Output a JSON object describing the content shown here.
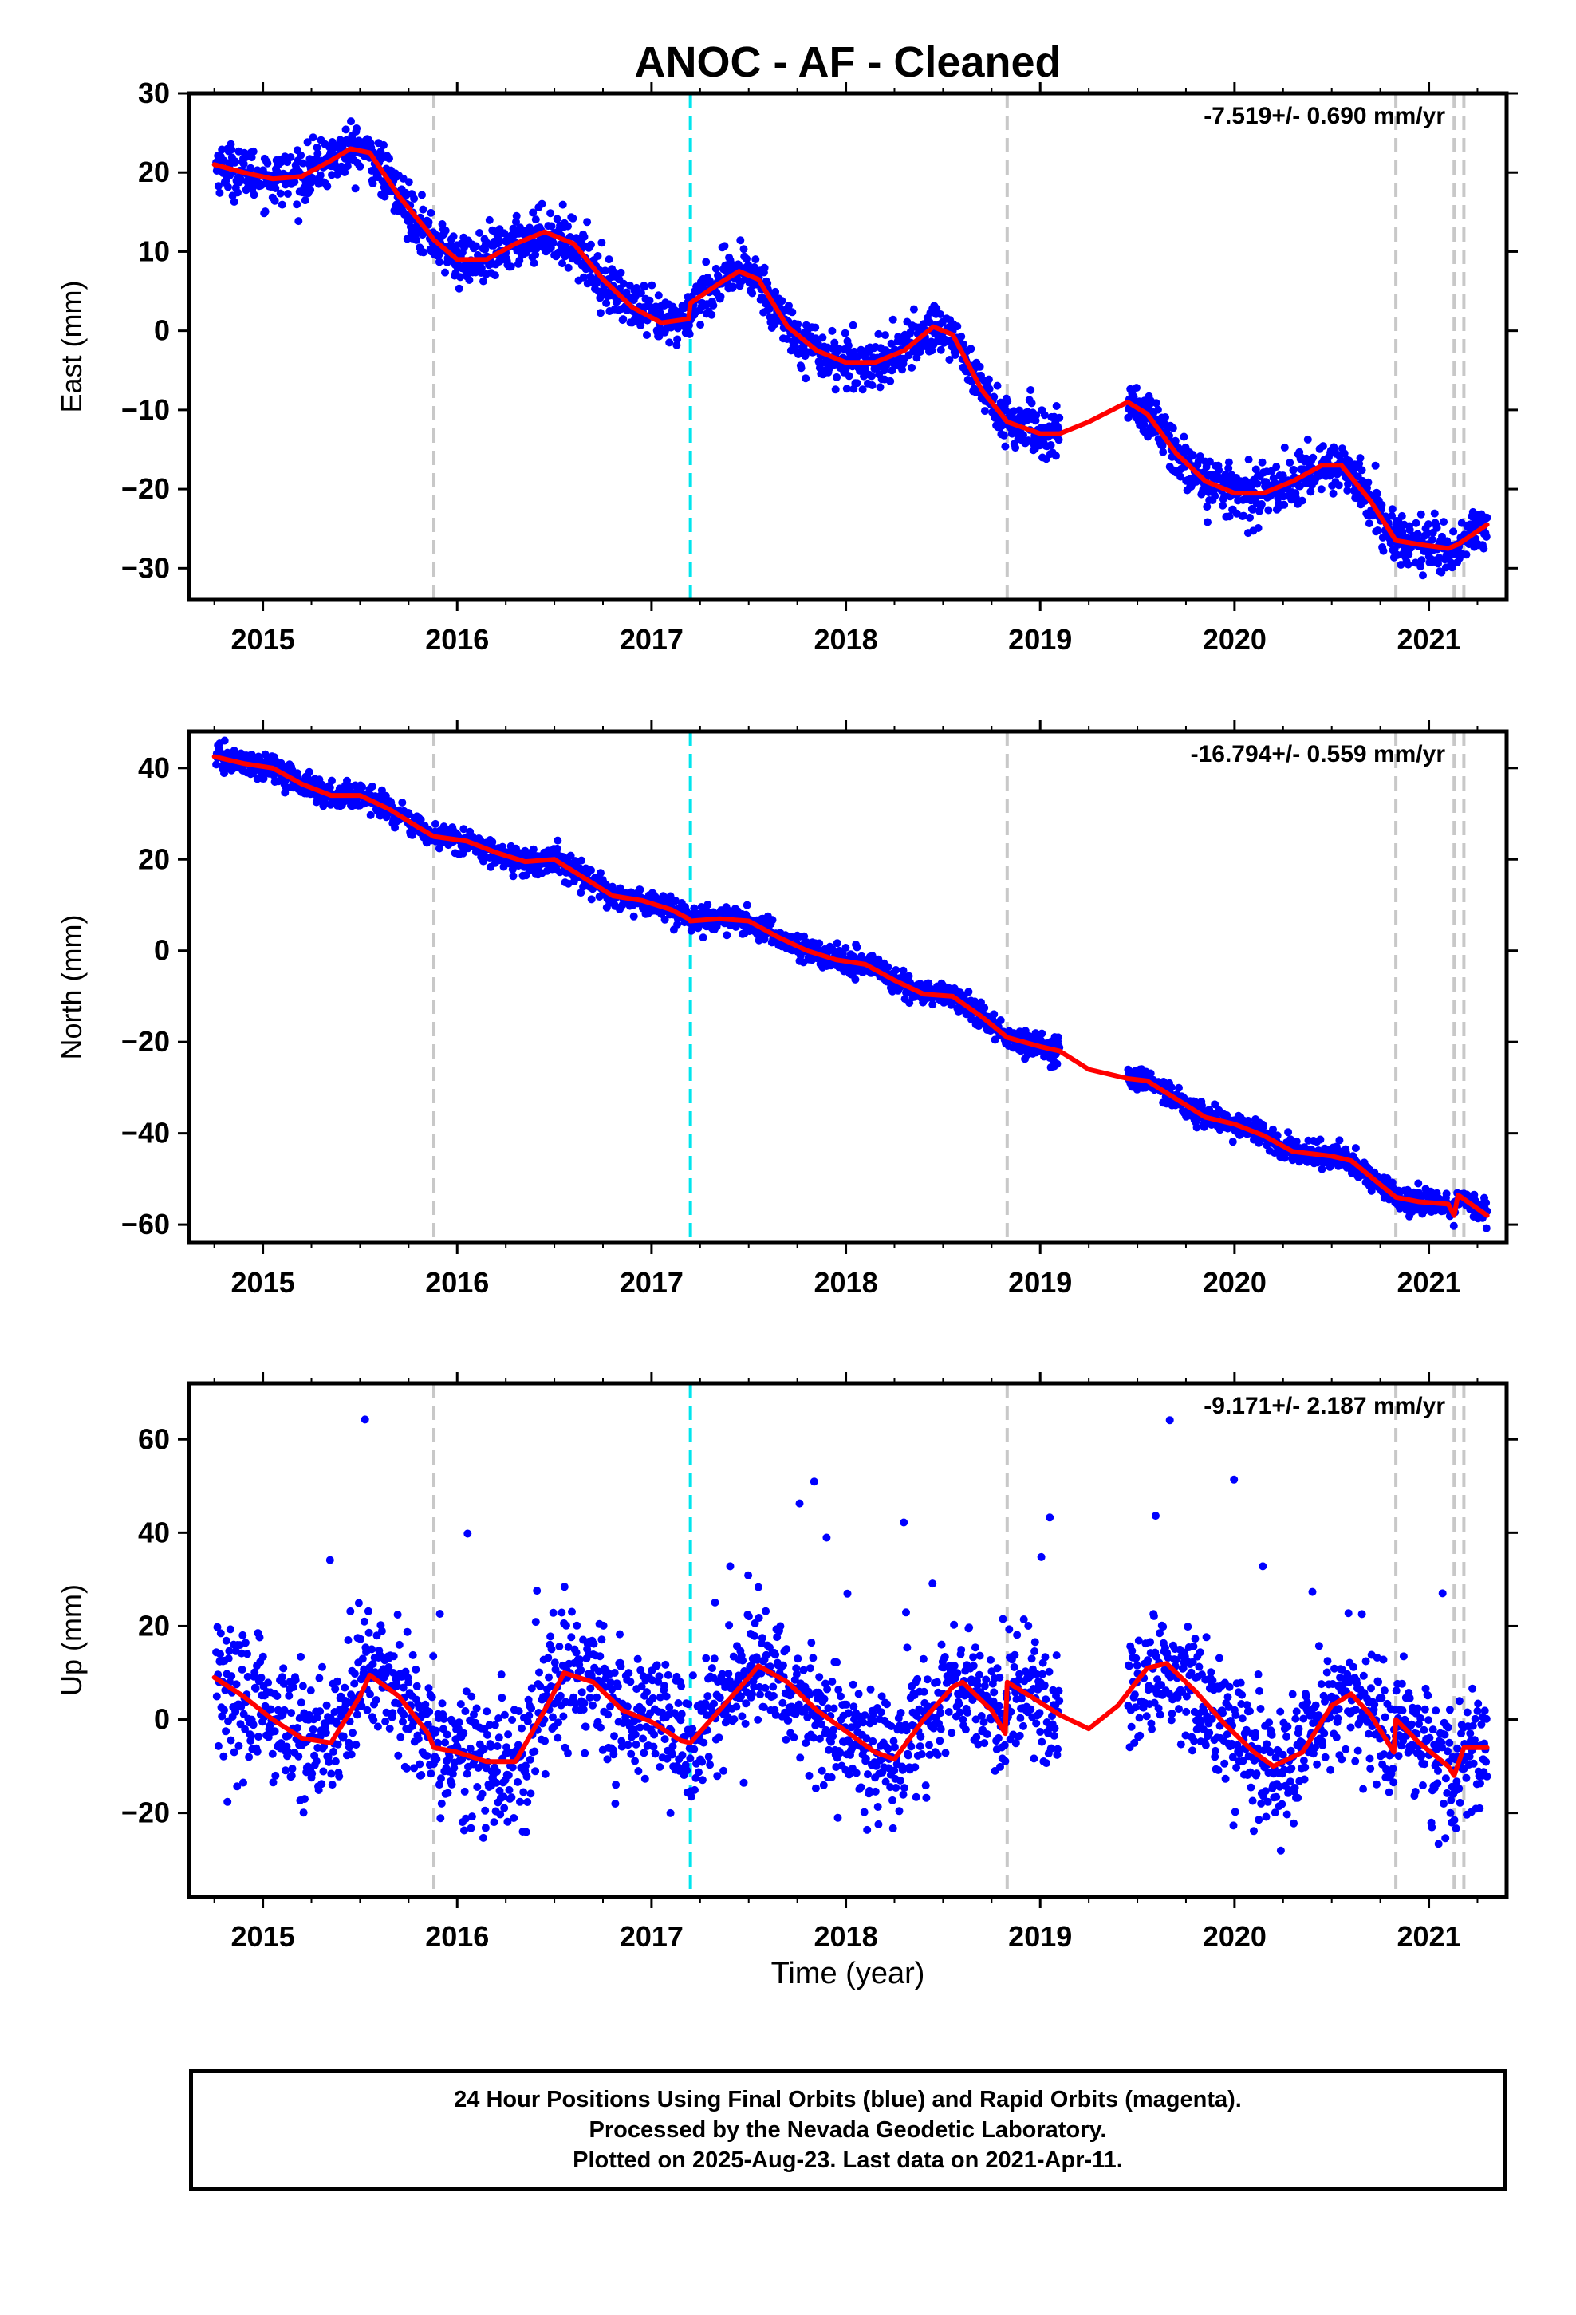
{
  "chart_data": {
    "title": "ANOC  - AF - Cleaned",
    "xlabel": "Time (year)",
    "type": "scatter",
    "xlim": [
      2014.62,
      2021.4
    ],
    "x_ticks": [
      "2015",
      "2016",
      "2017",
      "2018",
      "2019",
      "2020",
      "2021"
    ],
    "colors": {
      "observations": "#0000ff",
      "model": "#ff0000",
      "equipment_change": "#c8c8c8",
      "earthquake_offset": "#00e5ee"
    },
    "vertical_lines": {
      "gray": [
        2015.88,
        2018.83,
        2020.83,
        2021.13,
        2021.18
      ],
      "cyan": [
        2017.2
      ]
    },
    "data_gap": [
      2019.1,
      2019.45
    ],
    "panels": [
      {
        "id": "east",
        "ylabel": "East (mm)",
        "rate_label": "-7.519+/- 0.690 mm/yr",
        "ylim": [
          -34,
          30
        ],
        "y_ticks": [
          "30",
          "20",
          "10",
          "0",
          "−10",
          "−20",
          "−30"
        ],
        "y_tick_values": [
          30,
          20,
          10,
          0,
          -10,
          -20,
          -30
        ],
        "series": [
          {
            "name": "Final Orbits (blue)",
            "kind": "points"
          },
          {
            "name": "model",
            "kind": "line",
            "x": [
              2014.75,
              2014.9,
              2015.05,
              2015.2,
              2015.35,
              2015.45,
              2015.55,
              2015.7,
              2015.85,
              2015.88,
              2016.0,
              2016.15,
              2016.3,
              2016.45,
              2016.6,
              2016.75,
              2016.9,
              2017.05,
              2017.19,
              2017.2,
              2017.35,
              2017.45,
              2017.55,
              2017.7,
              2017.85,
              2018.0,
              2018.15,
              2018.3,
              2018.45,
              2018.55,
              2018.7,
              2018.83,
              2019.0,
              2019.1,
              2019.25,
              2019.45,
              2019.55,
              2019.7,
              2019.85,
              2020.0,
              2020.15,
              2020.3,
              2020.45,
              2020.55,
              2020.7,
              2020.83,
              2020.95,
              2021.1,
              2021.15,
              2021.3
            ],
            "y": [
              21,
              20,
              19.2,
              19.5,
              21.5,
              23,
              22.5,
              17,
              12.5,
              11.5,
              9,
              9,
              11,
              12.5,
              11,
              6.5,
              3,
              1,
              1.5,
              3.5,
              6,
              7.5,
              6.5,
              0.5,
              -2.5,
              -4,
              -4,
              -2.5,
              0.5,
              -0.5,
              -7.5,
              -11.5,
              -13,
              -13,
              -11.5,
              -9,
              -10.5,
              -15.5,
              -19,
              -20.5,
              -20.5,
              -19,
              -17,
              -17,
              -21.5,
              -26.5,
              -27,
              -27.5,
              -27,
              -24.5
            ]
          }
        ]
      },
      {
        "id": "north",
        "ylabel": "North (mm)",
        "rate_label": "-16.794+/- 0.559 mm/yr",
        "ylim": [
          -64,
          48
        ],
        "y_ticks": [
          "40",
          "20",
          "0",
          "−20",
          "−40",
          "−60"
        ],
        "y_tick_values": [
          40,
          20,
          0,
          -20,
          -40,
          -60
        ],
        "series": [
          {
            "name": "Final Orbits (blue)",
            "kind": "points"
          },
          {
            "name": "model",
            "kind": "line",
            "x": [
              2014.75,
              2014.9,
              2015.05,
              2015.2,
              2015.35,
              2015.5,
              2015.65,
              2015.8,
              2015.88,
              2016.05,
              2016.2,
              2016.35,
              2016.5,
              2016.65,
              2016.8,
              2016.95,
              2017.1,
              2017.19,
              2017.2,
              2017.35,
              2017.5,
              2017.65,
              2017.8,
              2017.95,
              2018.1,
              2018.25,
              2018.4,
              2018.55,
              2018.7,
              2018.83,
              2019.0,
              2019.1,
              2019.25,
              2019.45,
              2019.55,
              2019.7,
              2019.85,
              2020.0,
              2020.15,
              2020.3,
              2020.5,
              2020.6,
              2020.7,
              2020.83,
              2020.95,
              2021.1,
              2021.13,
              2021.15,
              2021.3
            ],
            "y": [
              42.5,
              41,
              40,
              36.5,
              34,
              34,
              31,
              27,
              25,
              24,
              21.5,
              19.5,
              20,
              16,
              12,
              11,
              9,
              7,
              6.5,
              7,
              6.5,
              3,
              0,
              -2,
              -3,
              -6.5,
              -9.5,
              -10,
              -14.5,
              -19,
              -21,
              -22,
              -26,
              -28,
              -28.5,
              -32.5,
              -36.5,
              -38,
              -40.5,
              -44,
              -45,
              -46,
              -49.5,
              -54,
              -55,
              -55.5,
              -58,
              -53.5,
              -58
            ]
          }
        ]
      },
      {
        "id": "up",
        "ylabel": "Up (mm)",
        "rate_label": "-9.171+/- 2.187 mm/yr",
        "ylim": [
          -38,
          72
        ],
        "y_ticks": [
          "60",
          "40",
          "20",
          "0",
          "−20"
        ],
        "y_tick_values": [
          60,
          40,
          20,
          0,
          -20
        ],
        "series": [
          {
            "name": "Final Orbits (blue)",
            "kind": "points"
          },
          {
            "name": "model",
            "kind": "line",
            "x": [
              2014.75,
              2014.9,
              2015.05,
              2015.2,
              2015.35,
              2015.5,
              2015.55,
              2015.7,
              2015.85,
              2015.88,
              2016.0,
              2016.15,
              2016.3,
              2016.45,
              2016.55,
              2016.7,
              2016.85,
              2017.0,
              2017.15,
              2017.2,
              2017.35,
              2017.5,
              2017.55,
              2017.7,
              2017.85,
              2018.0,
              2018.15,
              2018.25,
              2018.4,
              2018.55,
              2018.6,
              2018.75,
              2018.82,
              2018.83,
              2018.95,
              2019.1,
              2019.25,
              2019.4,
              2019.55,
              2019.65,
              2019.8,
              2019.95,
              2020.1,
              2020.2,
              2020.35,
              2020.5,
              2020.6,
              2020.7,
              2020.82,
              2020.83,
              2020.95,
              2021.1,
              2021.13,
              2021.18,
              2021.3
            ],
            "y": [
              9,
              5,
              0,
              -4,
              -5,
              5,
              9.5,
              5,
              -3,
              -6,
              -7,
              -9,
              -9,
              2,
              10,
              8,
              2,
              -0.5,
              -4.5,
              -5,
              2,
              9,
              11.5,
              8,
              2,
              -2.5,
              -7,
              -8.5,
              0,
              7,
              8,
              2,
              -3,
              8,
              5,
              1,
              -2,
              3,
              11,
              12,
              6,
              -1,
              -7,
              -10,
              -7,
              3,
              5.5,
              1,
              -7,
              0,
              -5,
              -10,
              -12,
              -6,
              -6
            ]
          }
        ]
      }
    ]
  },
  "footer": {
    "line1": "24 Hour Positions Using Final Orbits (blue) and Rapid Orbits (magenta).",
    "line2": "Processed by the Nevada Geodetic Laboratory.",
    "line3": "Plotted on 2025-Aug-23. Last data on 2021-Apr-11."
  }
}
